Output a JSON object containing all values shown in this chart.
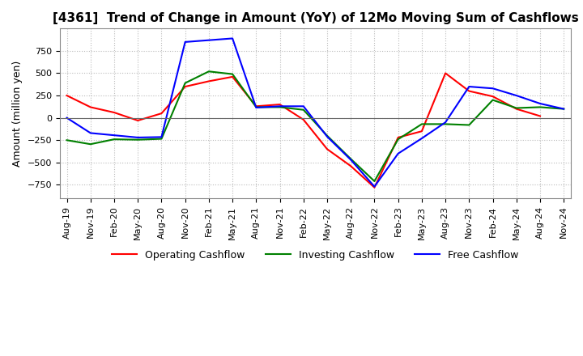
{
  "title": "[4361]  Trend of Change in Amount (YoY) of 12Mo Moving Sum of Cashflows",
  "ylabel": "Amount (million yen)",
  "ylim": [
    -900,
    1000
  ],
  "yticks": [
    -750,
    -500,
    -250,
    0,
    250,
    500,
    750
  ],
  "x_labels": [
    "Aug-19",
    "Nov-19",
    "Feb-20",
    "May-20",
    "Aug-20",
    "Nov-20",
    "Feb-21",
    "May-21",
    "Aug-21",
    "Nov-21",
    "Feb-22",
    "May-22",
    "Aug-22",
    "Nov-22",
    "Feb-23",
    "May-23",
    "Aug-23",
    "Nov-23",
    "Feb-24",
    "May-24",
    "Aug-24",
    "Nov-24"
  ],
  "operating": [
    250,
    120,
    60,
    -30,
    50,
    350,
    410,
    460,
    130,
    150,
    -20,
    -350,
    -540,
    -780,
    -220,
    -150,
    500,
    300,
    240,
    100,
    20,
    null
  ],
  "investing": [
    -250,
    -295,
    -240,
    -245,
    -235,
    390,
    520,
    490,
    120,
    120,
    90,
    -200,
    -460,
    -710,
    -240,
    -70,
    -70,
    -80,
    200,
    110,
    120,
    100
  ],
  "free": [
    0,
    -170,
    -195,
    -220,
    -215,
    850,
    870,
    890,
    115,
    130,
    130,
    -210,
    -470,
    -770,
    -400,
    -230,
    -50,
    350,
    330,
    250,
    160,
    100
  ],
  "line_colors": {
    "operating": "#ff0000",
    "investing": "#008000",
    "free": "#0000ff"
  },
  "legend_labels": [
    "Operating Cashflow",
    "Investing Cashflow",
    "Free Cashflow"
  ],
  "title_fontsize": 11,
  "tick_fontsize": 8,
  "ylabel_fontsize": 9,
  "background_color": "#ffffff",
  "grid_color": "#bbbbbb"
}
